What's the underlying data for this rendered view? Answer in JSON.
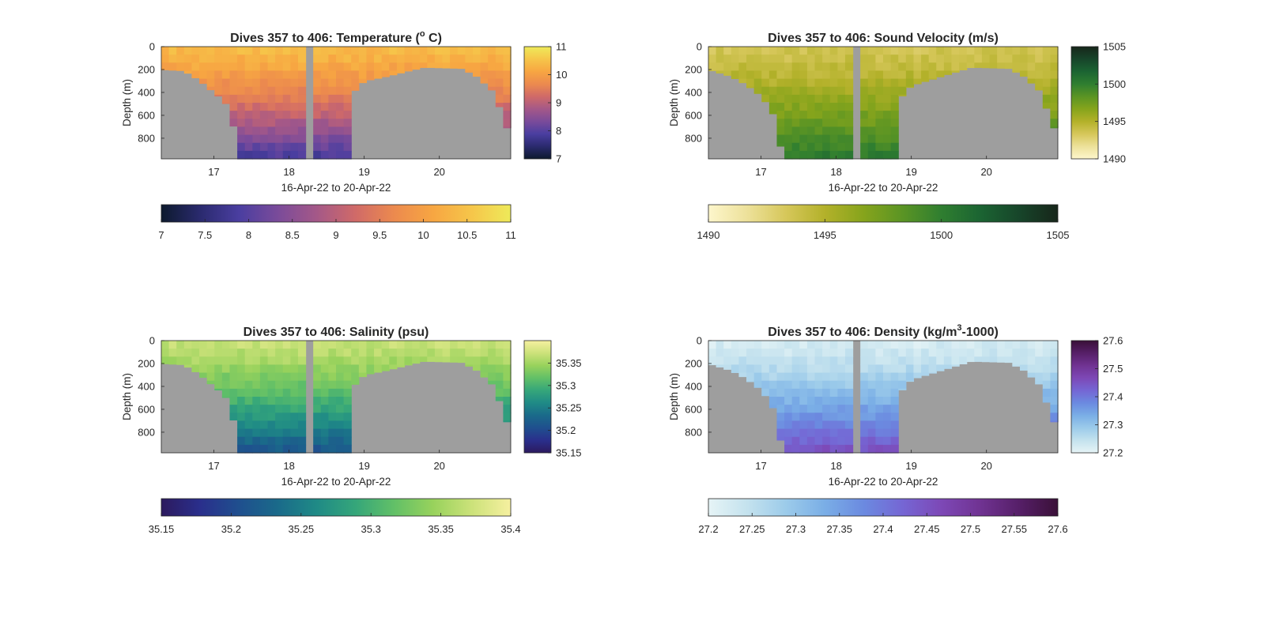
{
  "figure": {
    "background": "#ffffff",
    "seafloor_color": "#9e9e9e"
  },
  "chart_data": [
    {
      "type": "heatmap",
      "id": "temperature",
      "title": "Dives 357 to 406: Temperature (",
      "title_sup": "o",
      "title_tail": " C)",
      "xlabel": "16-Apr-22 to 20-Apr-22",
      "ylabel": "Depth (m)",
      "x_unit": "day of April 2022",
      "xlim": [
        16.3,
        20.95
      ],
      "xticks": [
        17,
        18,
        19,
        20
      ],
      "ylim": [
        980,
        0
      ],
      "yticks": [
        0,
        200,
        400,
        600,
        800
      ],
      "clim": [
        7,
        11
      ],
      "colormap": [
        "#0d1a2e",
        "#2a2a6e",
        "#4a3ea0",
        "#7a4b9a",
        "#a45888",
        "#d06a68",
        "#ec8a4e",
        "#f7a642",
        "#f6c64a",
        "#eeea5a"
      ],
      "colorbar_right_ticks": [
        7,
        8,
        9,
        10,
        11
      ],
      "colorbar_bottom_ticks": [
        "7",
        "7.5",
        "8",
        "8.5",
        "9",
        "9.5",
        "10",
        "10.5",
        "11"
      ],
      "seafloor_depth_m": [
        [
          16.3,
          200
        ],
        [
          16.6,
          210
        ],
        [
          16.8,
          290
        ],
        [
          17.0,
          400
        ],
        [
          17.15,
          480
        ],
        [
          17.25,
          660
        ],
        [
          17.35,
          980
        ],
        [
          18.25,
          980
        ],
        [
          18.25,
          0
        ],
        [
          18.35,
          0
        ],
        [
          18.35,
          980
        ],
        [
          18.8,
          980
        ],
        [
          18.85,
          400
        ],
        [
          19.0,
          300
        ],
        [
          19.3,
          260
        ],
        [
          19.6,
          210
        ],
        [
          19.8,
          180
        ],
        [
          20.3,
          190
        ],
        [
          20.5,
          260
        ],
        [
          20.7,
          380
        ],
        [
          20.85,
          600
        ],
        [
          20.95,
          820
        ]
      ],
      "surface_value": 10.4,
      "bottom_value": 7.8,
      "gap_x": [
        18.25,
        18.35
      ]
    },
    {
      "type": "heatmap",
      "id": "sound-velocity",
      "title": "Dives 357 to 406: Sound Velocity (m/s)",
      "xlabel": "16-Apr-22 to 20-Apr-22",
      "ylabel": "Depth (m)",
      "x_unit": "day of April 2022",
      "xlim": [
        16.3,
        20.95
      ],
      "xticks": [
        17,
        18,
        19,
        20
      ],
      "ylim": [
        980,
        0
      ],
      "yticks": [
        0,
        200,
        400,
        600,
        800
      ],
      "clim": [
        1490,
        1505
      ],
      "colormap": [
        "#fdf6cc",
        "#ede19a",
        "#d6c75a",
        "#b3b12a",
        "#86a41c",
        "#5a9424",
        "#2f7e30",
        "#1b6432",
        "#17452a",
        "#17261a"
      ],
      "colorbar_right_ticks": [
        1490,
        1495,
        1500,
        1505
      ],
      "colorbar_bottom_ticks": [
        "1490",
        "1495",
        "1500",
        "1505"
      ],
      "seafloor_depth_m": [
        [
          16.3,
          200
        ],
        [
          16.6,
          260
        ],
        [
          16.8,
          330
        ],
        [
          17.0,
          430
        ],
        [
          17.15,
          560
        ],
        [
          17.3,
          980
        ],
        [
          18.25,
          980
        ],
        [
          18.25,
          0
        ],
        [
          18.35,
          0
        ],
        [
          18.35,
          980
        ],
        [
          18.8,
          980
        ],
        [
          18.85,
          450
        ],
        [
          19.0,
          340
        ],
        [
          19.3,
          280
        ],
        [
          19.6,
          220
        ],
        [
          19.8,
          180
        ],
        [
          20.3,
          190
        ],
        [
          20.5,
          260
        ],
        [
          20.7,
          380
        ],
        [
          20.85,
          620
        ],
        [
          20.95,
          800
        ]
      ],
      "surface_value": 1493.5,
      "bottom_value": 1500.5,
      "gap_x": [
        18.25,
        18.35
      ]
    },
    {
      "type": "heatmap",
      "id": "salinity",
      "title": "Dives 357 to 406: Salinity (psu)",
      "xlabel": "16-Apr-22 to 20-Apr-22",
      "ylabel": "Depth (m)",
      "x_unit": "day of April 2022",
      "xlim": [
        16.3,
        20.95
      ],
      "xticks": [
        17,
        18,
        19,
        20
      ],
      "ylim": [
        980,
        0
      ],
      "yticks": [
        0,
        200,
        400,
        600,
        800
      ],
      "clim": [
        35.15,
        35.4
      ],
      "colormap": [
        "#2c1a5e",
        "#2a2f8c",
        "#1f4f8e",
        "#1a6a8a",
        "#1f8a86",
        "#35a67a",
        "#62c067",
        "#98d25c",
        "#cce27a",
        "#f6f0a0"
      ],
      "colorbar_right_ticks": [
        35.2,
        35.25,
        35.3,
        35.35
      ],
      "colorbar_right_extra": [
        35.15
      ],
      "colorbar_bottom_ticks": [
        "35.15",
        "35.2",
        "35.25",
        "35.3",
        "35.35",
        "35.4"
      ],
      "seafloor_depth_m": [
        [
          16.3,
          200
        ],
        [
          16.6,
          210
        ],
        [
          16.8,
          290
        ],
        [
          17.0,
          400
        ],
        [
          17.15,
          480
        ],
        [
          17.25,
          660
        ],
        [
          17.35,
          980
        ],
        [
          18.25,
          980
        ],
        [
          18.25,
          0
        ],
        [
          18.35,
          0
        ],
        [
          18.35,
          980
        ],
        [
          18.8,
          980
        ],
        [
          18.85,
          400
        ],
        [
          19.0,
          300
        ],
        [
          19.3,
          260
        ],
        [
          19.6,
          210
        ],
        [
          19.8,
          180
        ],
        [
          20.3,
          190
        ],
        [
          20.5,
          260
        ],
        [
          20.7,
          380
        ],
        [
          20.85,
          600
        ],
        [
          20.95,
          820
        ]
      ],
      "surface_value": 35.37,
      "bottom_value": 35.21,
      "gap_x": [
        18.25,
        18.35
      ]
    },
    {
      "type": "heatmap",
      "id": "density",
      "title": "Dives 357 to 406: Density (kg/m",
      "title_sup": "3",
      "title_tail": "-1000)",
      "xlabel": "16-Apr-22 to 20-Apr-22",
      "ylabel": "Depth (m)",
      "x_unit": "day of April 2022",
      "xlim": [
        16.3,
        20.95
      ],
      "xticks": [
        17,
        18,
        19,
        20
      ],
      "ylim": [
        980,
        0
      ],
      "yticks": [
        0,
        200,
        400,
        600,
        800
      ],
      "clim": [
        27.2,
        27.6
      ],
      "colormap": [
        "#e6f4f6",
        "#c4e2ee",
        "#9ccbea",
        "#7aaee6",
        "#6b8ae0",
        "#7566d4",
        "#7d48b6",
        "#703392",
        "#561f68",
        "#3a1038"
      ],
      "colorbar_right_ticks": [
        27.2,
        27.3,
        27.4,
        27.5,
        27.6
      ],
      "colorbar_bottom_ticks": [
        "27.2",
        "27.25",
        "27.3",
        "27.35",
        "27.4",
        "27.45",
        "27.5",
        "27.55",
        "27.6"
      ],
      "seafloor_depth_m": [
        [
          16.3,
          200
        ],
        [
          16.6,
          260
        ],
        [
          16.8,
          330
        ],
        [
          17.0,
          430
        ],
        [
          17.15,
          560
        ],
        [
          17.3,
          980
        ],
        [
          18.25,
          980
        ],
        [
          18.25,
          0
        ],
        [
          18.35,
          0
        ],
        [
          18.35,
          980
        ],
        [
          18.8,
          980
        ],
        [
          18.85,
          450
        ],
        [
          19.0,
          340
        ],
        [
          19.3,
          280
        ],
        [
          19.6,
          220
        ],
        [
          19.8,
          180
        ],
        [
          20.3,
          190
        ],
        [
          20.5,
          260
        ],
        [
          20.7,
          380
        ],
        [
          20.85,
          620
        ],
        [
          20.95,
          800
        ]
      ],
      "surface_value": 27.22,
      "bottom_value": 27.46,
      "gap_x": [
        18.25,
        18.35
      ]
    }
  ]
}
